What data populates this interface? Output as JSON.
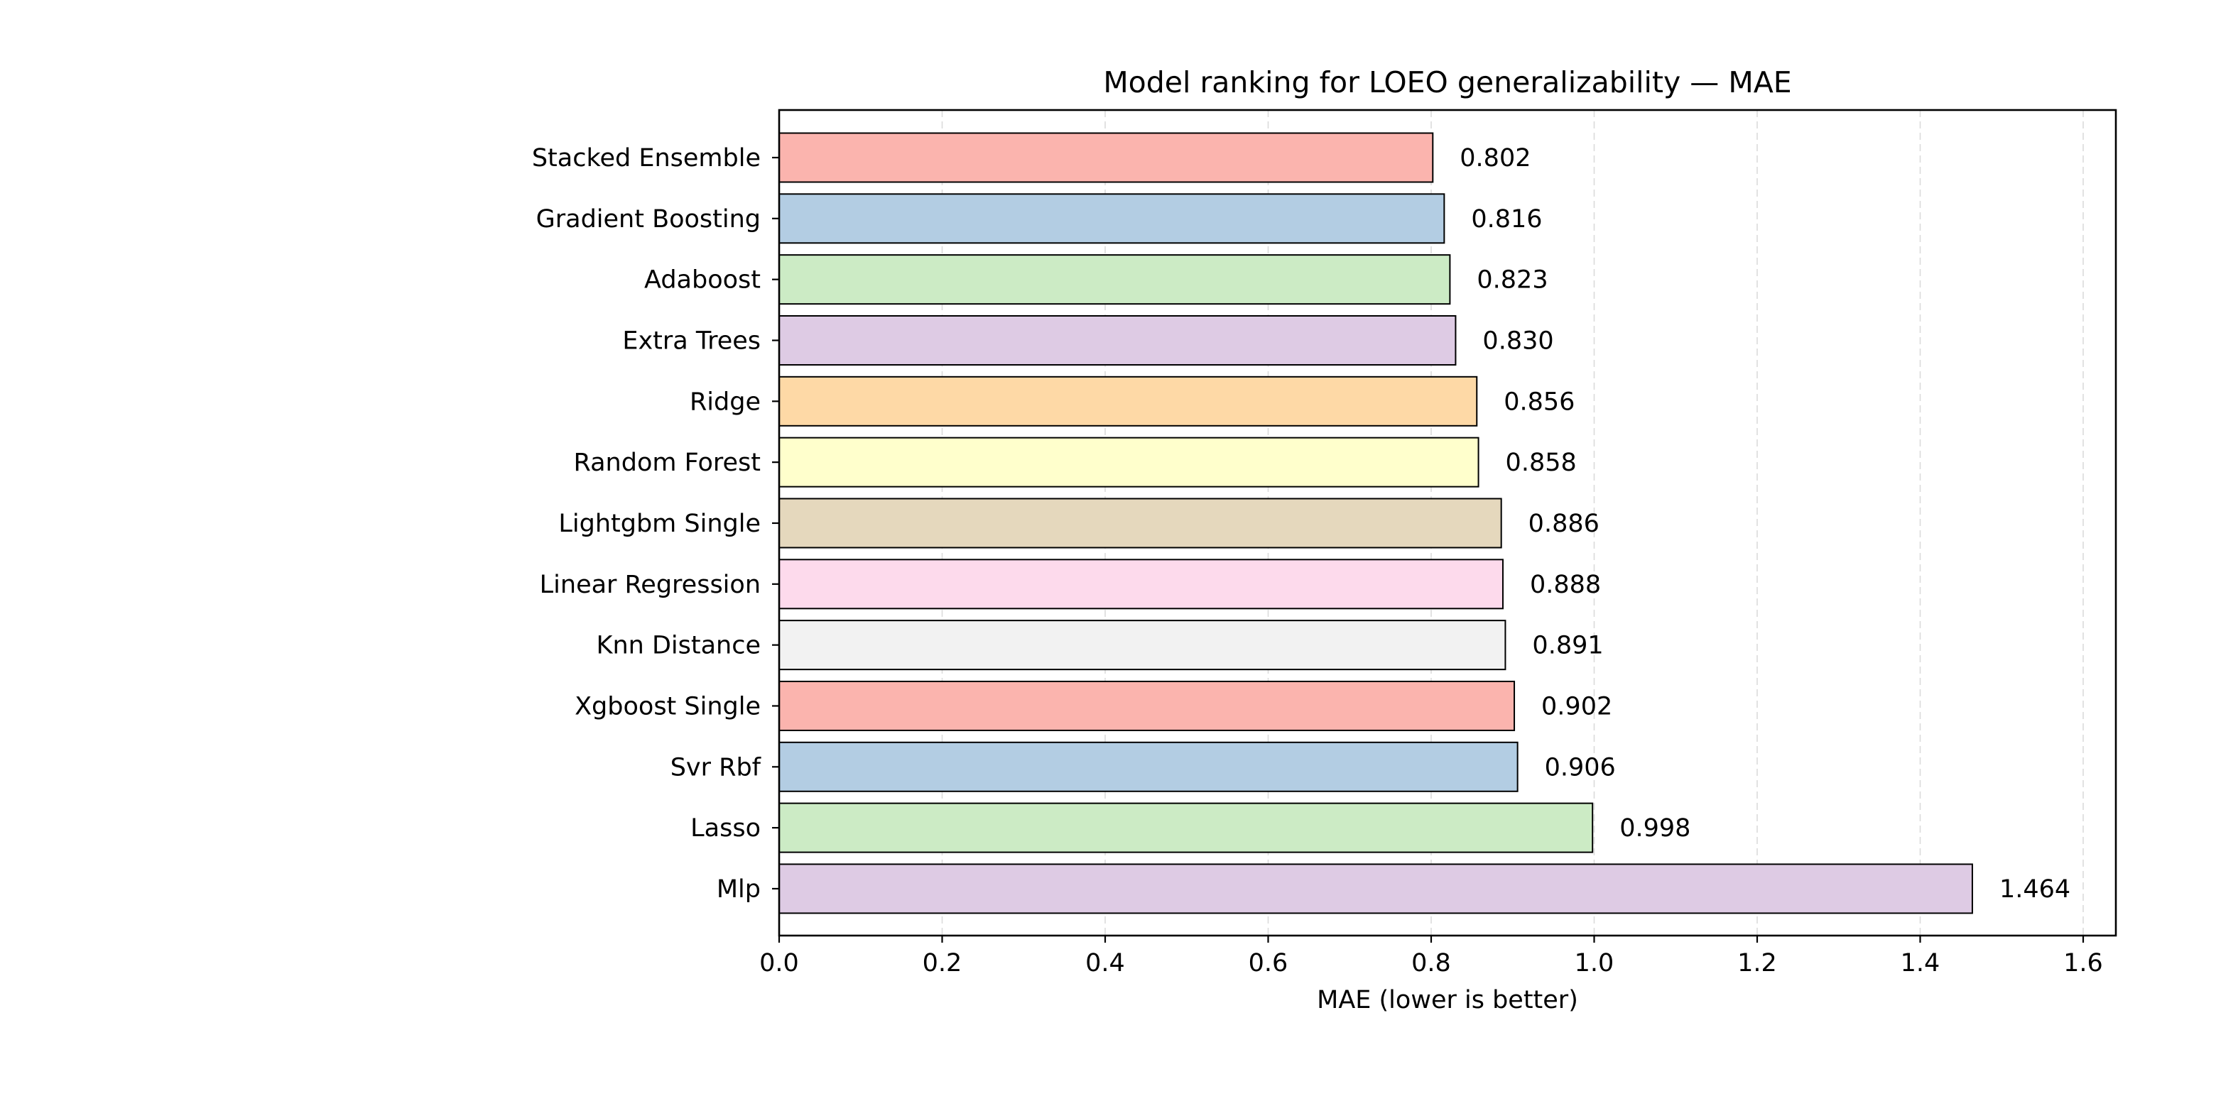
{
  "chart_data": {
    "type": "bar",
    "orientation": "horizontal",
    "title": "Model ranking for LOEO generalizability — MAE",
    "xlabel": "MAE (lower is better)",
    "ylabel": "",
    "xlim": [
      0,
      1.64
    ],
    "xticks": [
      0.0,
      0.2,
      0.4,
      0.6,
      0.8,
      1.0,
      1.2,
      1.4,
      1.6
    ],
    "xtick_labels": [
      "0.0",
      "0.2",
      "0.4",
      "0.6",
      "0.8",
      "1.0",
      "1.2",
      "1.4",
      "1.6"
    ],
    "grid": "x-axis, dashed, light gray",
    "legend": "none",
    "categories": [
      "Stacked Ensemble",
      "Gradient Boosting",
      "Adaboost",
      "Extra Trees",
      "Ridge",
      "Random Forest",
      "Lightgbm Single",
      "Linear Regression",
      "Knn Distance",
      "Xgboost Single",
      "Svr Rbf",
      "Lasso",
      "Mlp"
    ],
    "values": [
      0.802,
      0.816,
      0.823,
      0.83,
      0.856,
      0.858,
      0.886,
      0.888,
      0.891,
      0.902,
      0.906,
      0.998,
      1.464
    ],
    "value_labels": [
      "0.802",
      "0.816",
      "0.823",
      "0.830",
      "0.856",
      "0.858",
      "0.886",
      "0.888",
      "0.891",
      "0.902",
      "0.906",
      "0.998",
      "1.464"
    ],
    "colors": [
      "#fbb4ae",
      "#b3cde3",
      "#ccebc5",
      "#decbe4",
      "#fed9a6",
      "#ffffcc",
      "#e5d8bd",
      "#fddaec",
      "#f2f2f2",
      "#fbb4ae",
      "#b3cde3",
      "#ccebc5",
      "#decbe4"
    ],
    "bar_edge_color": "#000000"
  }
}
